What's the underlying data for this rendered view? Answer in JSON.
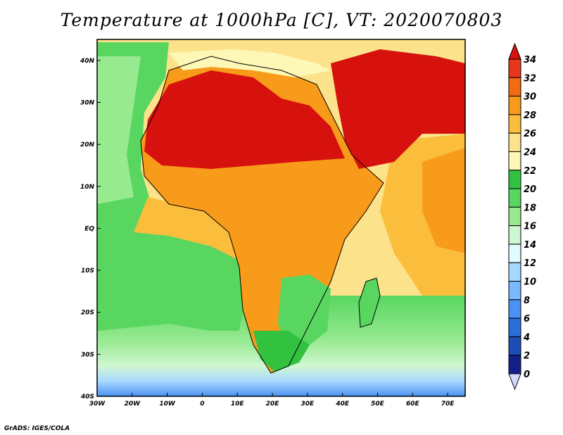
{
  "title": "Temperature at 1000hPa [C], VT: 2020070803",
  "credit": "GrADS: IGES/COLA",
  "map": {
    "longitude_ticks": [
      "30W",
      "20W",
      "10W",
      "0",
      "10E",
      "20E",
      "30E",
      "40E",
      "50E",
      "60E",
      "70E"
    ],
    "latitude_ticks": [
      "40N",
      "30N",
      "20N",
      "10N",
      "EQ",
      "10S",
      "20S",
      "30S",
      "40S"
    ],
    "lon_range_deg": [
      -30,
      75
    ],
    "lat_range_deg": [
      -40,
      45
    ]
  },
  "colorbar": {
    "labels": [
      "34",
      "32",
      "30",
      "28",
      "26",
      "24",
      "22",
      "20",
      "18",
      "16",
      "14",
      "12",
      "10",
      "8",
      "6",
      "4",
      "2",
      "0"
    ],
    "colors": [
      "#d7120e",
      "#e8361c",
      "#f26b12",
      "#f89a1a",
      "#fbbe3c",
      "#fce28a",
      "#fdf8b6",
      "#33c240",
      "#58d660",
      "#98ea90",
      "#cff7d2",
      "#e2fbff",
      "#a9d8ff",
      "#7ab8ff",
      "#4a93f4",
      "#2a6ed8",
      "#1c4cb6",
      "#12208a",
      "#0a0a4a"
    ]
  }
}
